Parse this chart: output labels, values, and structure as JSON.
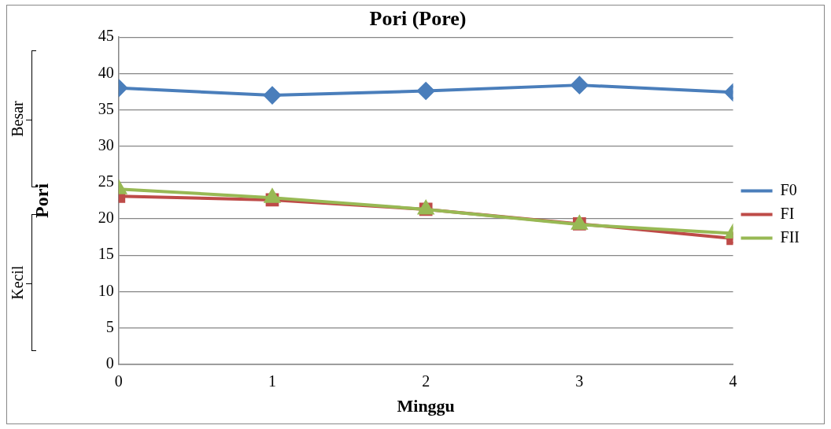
{
  "chart_data": {
    "type": "line",
    "title": "Pori (Pore)",
    "xlabel": "Minggu",
    "ylabel": "Pori",
    "annotations": [
      "Besar",
      "Kecil"
    ],
    "x": [
      0,
      1,
      2,
      3,
      4
    ],
    "xlim": [
      0,
      4
    ],
    "xticks": [
      0,
      1,
      2,
      3,
      4
    ],
    "ylim": [
      0,
      45
    ],
    "yticks": [
      0,
      5,
      10,
      15,
      20,
      25,
      30,
      35,
      40,
      45
    ],
    "grid": "y",
    "legend": "right",
    "line_style": "solid",
    "series": [
      {
        "name": "F0",
        "color": "#4a7ebb",
        "marker": "diamond",
        "values": [
          38.0,
          37.0,
          37.6,
          38.4,
          37.4
        ]
      },
      {
        "name": "FI",
        "color": "#be4b48",
        "marker": "square",
        "values": [
          23.1,
          22.6,
          21.3,
          19.3,
          17.3
        ]
      },
      {
        "name": "FII",
        "color": "#98b954",
        "marker": "triangle",
        "values": [
          24.1,
          22.9,
          21.3,
          19.2,
          18.0
        ]
      }
    ]
  }
}
